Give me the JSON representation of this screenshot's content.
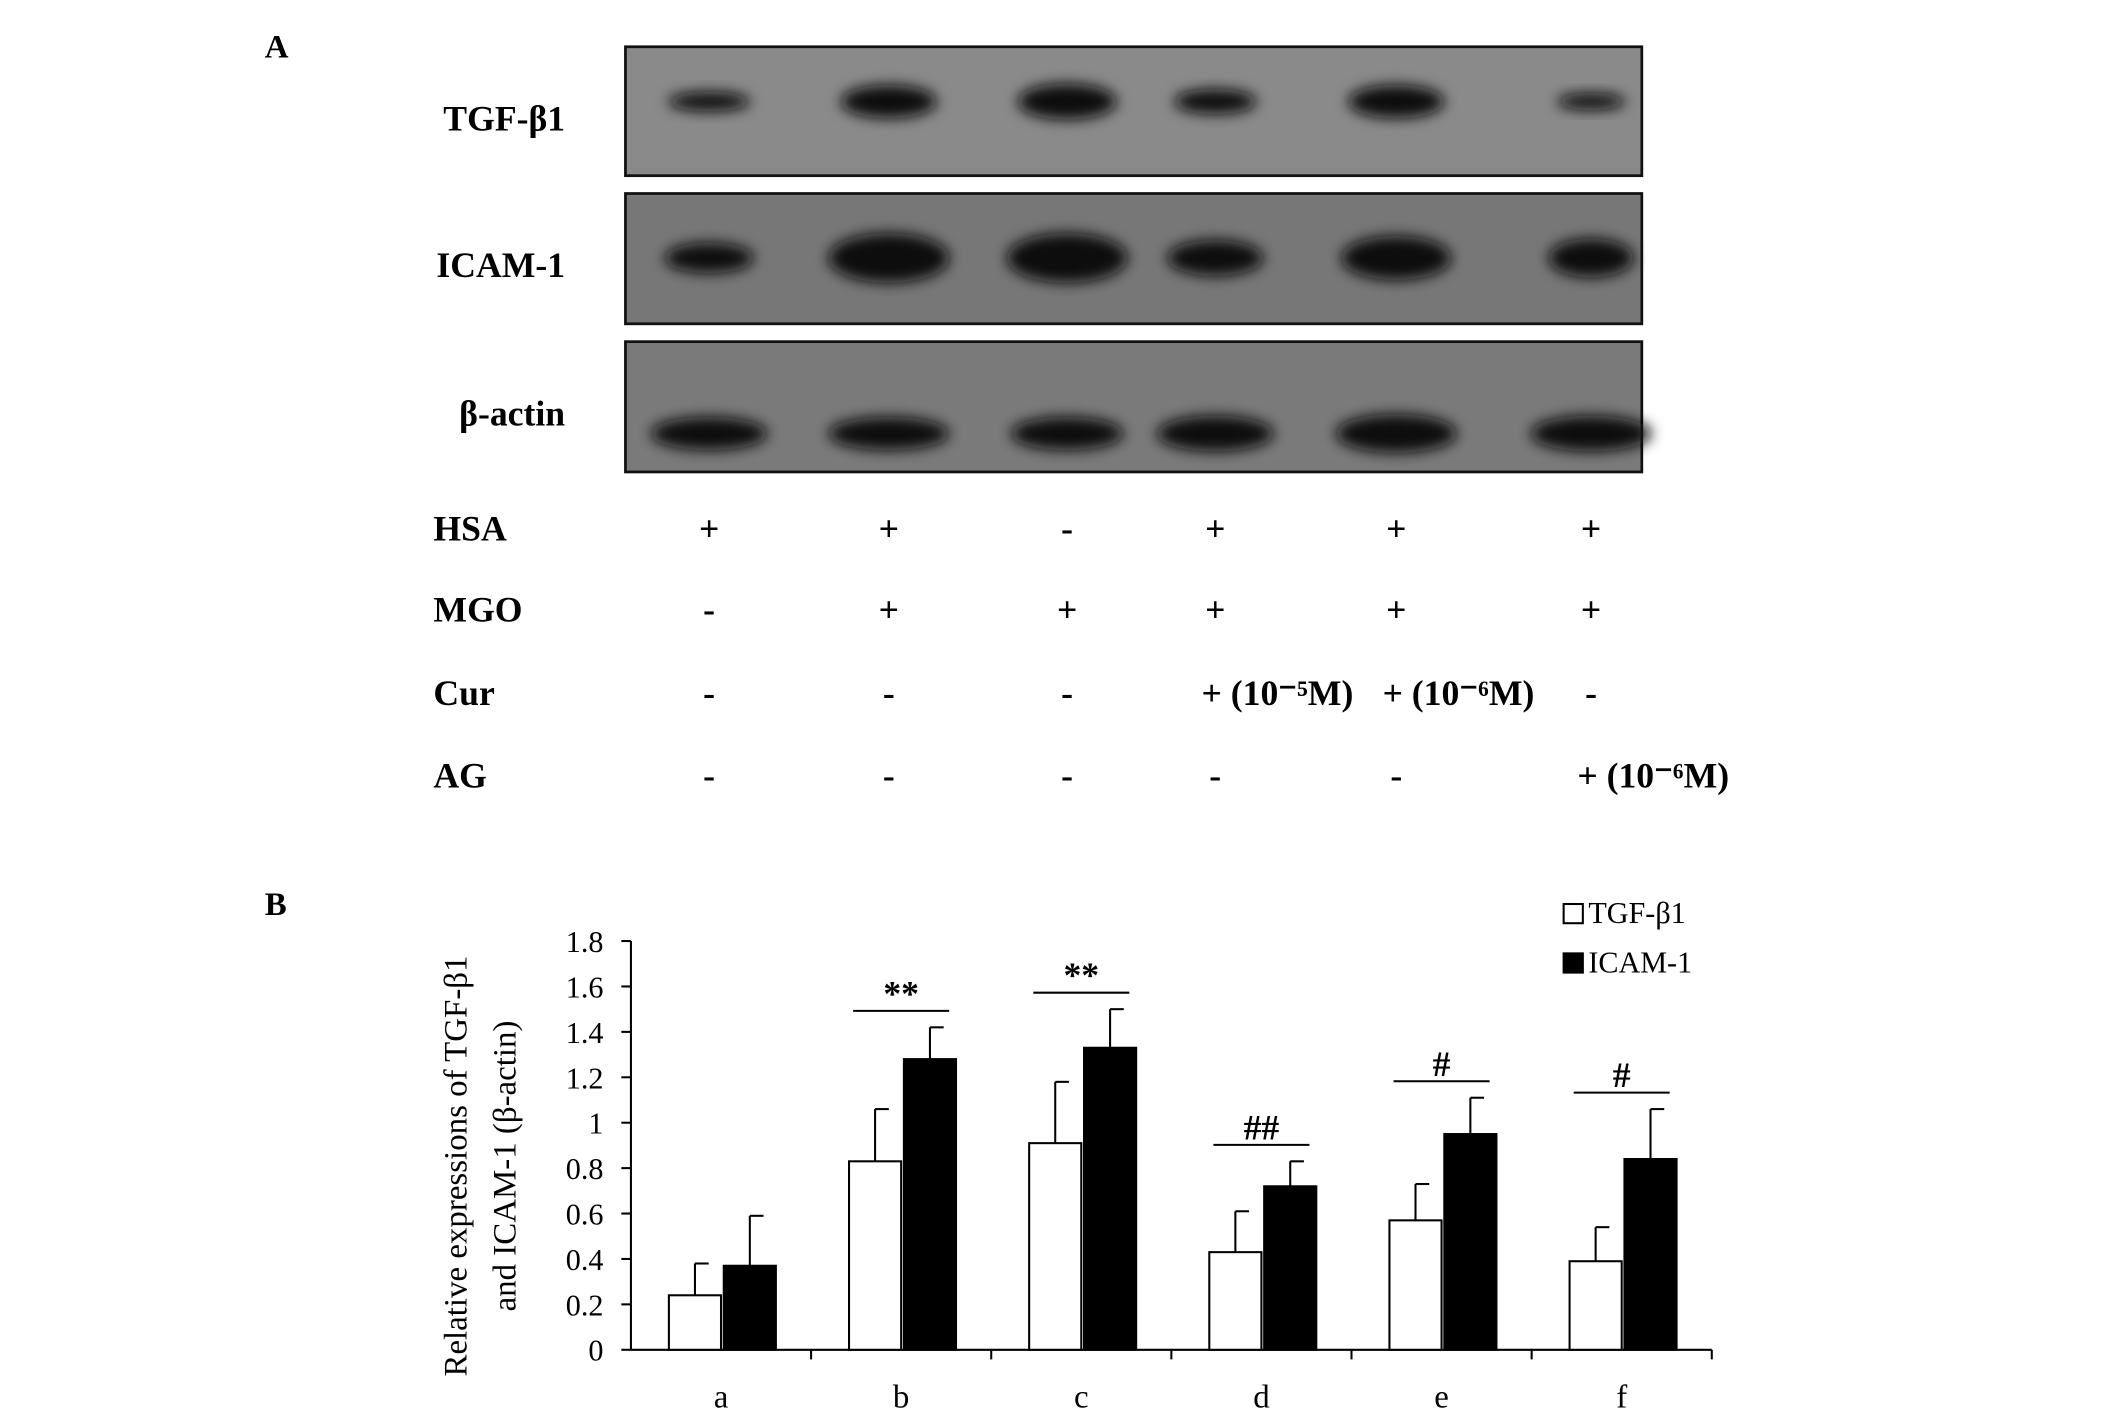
{
  "panel_a": {
    "label": "A",
    "blot_labels": [
      "TGF-β1",
      "ICAM-1",
      "β-actin"
    ],
    "treatments": [
      {
        "name": "HSA",
        "cells": [
          "+",
          "+",
          "-",
          "+",
          "+",
          "+"
        ]
      },
      {
        "name": "MGO",
        "cells": [
          "-",
          "+",
          "+",
          "+",
          "+",
          "+"
        ]
      },
      {
        "name": "Cur",
        "cells": [
          "-",
          "-",
          "-",
          "+ (10⁻⁵M)",
          "+ (10⁻⁶M)",
          "-"
        ]
      },
      {
        "name": "AG",
        "cells": [
          "-",
          "-",
          "-",
          "-",
          "-",
          "+ (10⁻⁶M)"
        ]
      }
    ]
  },
  "chart_data": {
    "type": "bar",
    "panel_label": "B",
    "ylabel": [
      "Relative expressions of TGF-β1",
      "and ICAM-1 (β-actin)"
    ],
    "categories": [
      "a",
      "b",
      "c",
      "d",
      "e",
      "f"
    ],
    "series": [
      {
        "name": "TGF-β1",
        "color": "#ffffff",
        "values": [
          0.24,
          0.83,
          0.91,
          0.43,
          0.57,
          0.39
        ],
        "errors": [
          0.14,
          0.23,
          0.27,
          0.18,
          0.16,
          0.15
        ]
      },
      {
        "name": "ICAM-1",
        "color": "#000000",
        "values": [
          0.37,
          1.28,
          1.33,
          0.72,
          0.95,
          0.84
        ],
        "errors": [
          0.22,
          0.14,
          0.17,
          0.11,
          0.16,
          0.22
        ]
      }
    ],
    "significance": [
      null,
      "**",
      "**",
      "##",
      "#",
      "#"
    ],
    "ylim": [
      0,
      1.8
    ],
    "yticks": [
      0,
      0.2,
      0.4,
      0.6,
      0.8,
      1,
      1.2,
      1.4,
      1.6,
      1.8
    ],
    "legend": "top-right"
  }
}
